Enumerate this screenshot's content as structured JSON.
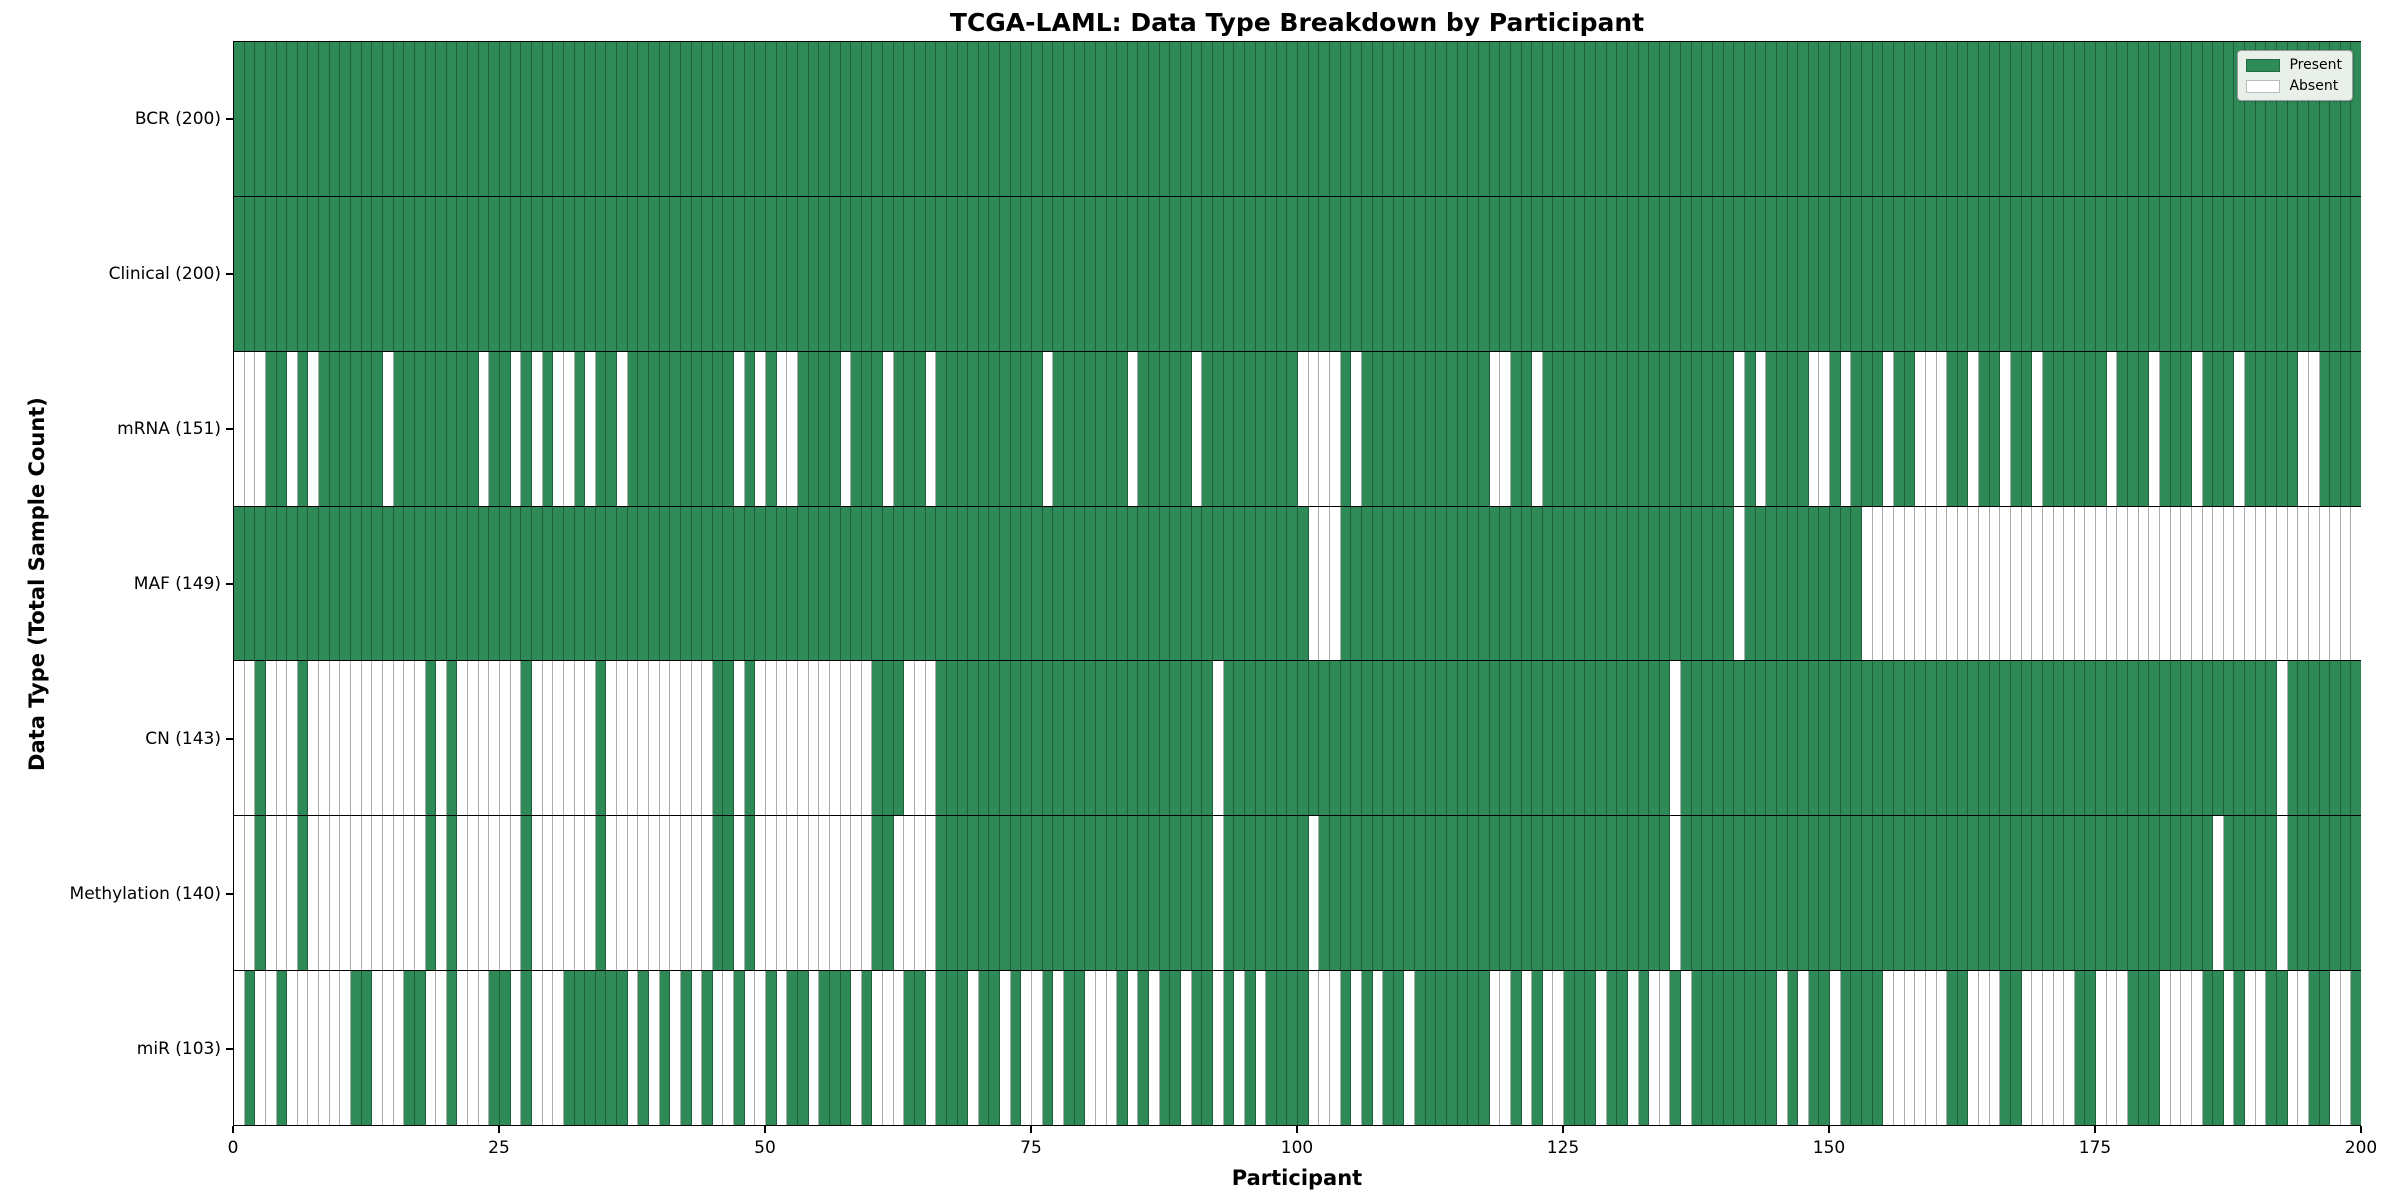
{
  "chart_data": {
    "type": "heatmap",
    "title": "TCGA-LAML: Data Type Breakdown by Participant",
    "xlabel": "Participant",
    "ylabel": "Data Type (Total Sample Count)",
    "x_range": [
      0,
      200
    ],
    "n_participants": 200,
    "x_ticks": [
      0,
      25,
      50,
      75,
      100,
      125,
      150,
      175,
      200
    ],
    "grid": "cell-borders",
    "legend_position": "upper-right-inside",
    "colors": {
      "present": "#2e8b57",
      "absent": "#ffffff",
      "cell_border": "rgba(0,0,0,0.32)",
      "row_separator": "#000000",
      "legend_background": "#e9efe9",
      "legend_border": "#999999"
    },
    "legend": [
      {
        "label": "Present",
        "color": "#2e8b57"
      },
      {
        "label": "Absent",
        "color": "#ffffff"
      }
    ],
    "rows": [
      {
        "name": "BCR",
        "total": 200,
        "label": "BCR (200)",
        "absent": []
      },
      {
        "name": "Clinical",
        "total": 200,
        "label": "Clinical (200)",
        "absent": []
      },
      {
        "name": "mRNA",
        "total": 151,
        "label": "mRNA (151)",
        "absent": [
          0,
          1,
          2,
          5,
          7,
          14,
          23,
          26,
          28,
          30,
          31,
          33,
          36,
          47,
          49,
          51,
          52,
          57,
          61,
          65,
          76,
          84,
          90,
          100,
          101,
          102,
          103,
          105,
          118,
          119,
          122,
          141,
          143,
          148,
          149,
          151,
          155,
          158,
          159,
          160,
          163,
          166,
          169,
          176,
          180,
          184,
          188,
          194,
          195
        ]
      },
      {
        "name": "MAF",
        "total": 149,
        "label": "MAF (149)",
        "absent": [
          101,
          102,
          103,
          141,
          153,
          154,
          155,
          156,
          157,
          158,
          159,
          160,
          161,
          162,
          163,
          164,
          165,
          166,
          167,
          168,
          169,
          170,
          171,
          172,
          173,
          174,
          175,
          176,
          177,
          178,
          179,
          180,
          181,
          182,
          183,
          184,
          185,
          186,
          187,
          188,
          189,
          190,
          191,
          192,
          193,
          194,
          195,
          196,
          197,
          198,
          199
        ]
      },
      {
        "name": "CN",
        "total": 143,
        "label": "CN (143)",
        "absent": [
          0,
          1,
          3,
          4,
          5,
          7,
          8,
          9,
          10,
          11,
          12,
          13,
          14,
          15,
          16,
          17,
          19,
          21,
          22,
          23,
          24,
          25,
          26,
          28,
          29,
          30,
          31,
          32,
          33,
          35,
          36,
          37,
          38,
          39,
          40,
          41,
          42,
          43,
          44,
          47,
          49,
          50,
          51,
          52,
          53,
          54,
          55,
          56,
          57,
          58,
          59,
          63,
          64,
          65,
          92,
          135,
          192
        ]
      },
      {
        "name": "Methylation",
        "total": 140,
        "label": "Methylation (140)",
        "absent": [
          0,
          1,
          3,
          4,
          5,
          7,
          8,
          9,
          10,
          11,
          12,
          13,
          14,
          15,
          16,
          17,
          19,
          21,
          22,
          23,
          24,
          25,
          26,
          28,
          29,
          30,
          31,
          32,
          33,
          35,
          36,
          37,
          38,
          39,
          40,
          41,
          42,
          43,
          44,
          47,
          49,
          50,
          51,
          52,
          53,
          54,
          55,
          56,
          57,
          58,
          59,
          62,
          63,
          64,
          65,
          92,
          101,
          135,
          186,
          192
        ]
      },
      {
        "name": "miR",
        "total": 103,
        "label": "miR (103)",
        "absent": [
          0,
          2,
          3,
          5,
          6,
          7,
          8,
          9,
          10,
          13,
          14,
          15,
          18,
          19,
          21,
          22,
          23,
          26,
          28,
          29,
          30,
          37,
          39,
          41,
          43,
          45,
          46,
          48,
          49,
          51,
          54,
          58,
          60,
          61,
          62,
          65,
          69,
          72,
          74,
          75,
          77,
          80,
          81,
          82,
          84,
          86,
          89,
          92,
          94,
          96,
          101,
          102,
          103,
          105,
          107,
          110,
          118,
          119,
          121,
          123,
          124,
          128,
          131,
          133,
          134,
          136,
          145,
          147,
          150,
          155,
          156,
          157,
          158,
          159,
          160,
          163,
          164,
          165,
          168,
          169,
          170,
          171,
          172,
          175,
          176,
          177,
          181,
          182,
          183,
          184,
          187,
          189,
          190,
          193,
          194,
          197,
          198
        ]
      }
    ]
  }
}
